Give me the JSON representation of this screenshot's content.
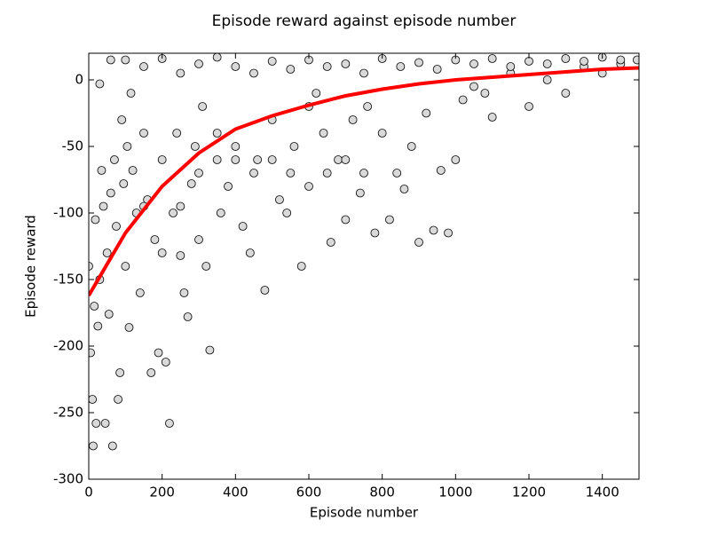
{
  "chart_data": {
    "type": "scatter",
    "title": "Episode reward against episode number",
    "xlabel": "Episode number",
    "ylabel": "Episode reward",
    "xlim": [
      0,
      1500
    ],
    "ylim": [
      -300,
      20
    ],
    "xticks": [
      0,
      200,
      400,
      600,
      800,
      1000,
      1200,
      1400
    ],
    "yticks": [
      -300,
      -250,
      -200,
      -150,
      -100,
      -50,
      0
    ],
    "series": [
      {
        "mode": "markers",
        "color": "#d9d9d9",
        "x": [
          0,
          5,
          10,
          12,
          15,
          18,
          20,
          25,
          30,
          35,
          40,
          45,
          50,
          55,
          60,
          65,
          70,
          75,
          80,
          85,
          90,
          95,
          100,
          105,
          110,
          115,
          120,
          130,
          140,
          150,
          160,
          170,
          180,
          190,
          200,
          210,
          220,
          230,
          240,
          250,
          260,
          270,
          280,
          290,
          300,
          310,
          320,
          330,
          350,
          360,
          380,
          400,
          420,
          440,
          460,
          480,
          500,
          520,
          540,
          560,
          580,
          600,
          620,
          640,
          660,
          680,
          700,
          720,
          740,
          760,
          780,
          800,
          820,
          840,
          860,
          880,
          900,
          920,
          940,
          960,
          980,
          1000,
          1020,
          1050,
          1080,
          1100,
          1150,
          1200,
          1250,
          1300,
          1350,
          1400,
          1450,
          1495,
          100,
          150,
          200,
          250,
          300,
          350,
          400,
          450,
          500,
          550,
          600,
          650,
          700,
          750,
          800,
          850,
          900,
          950,
          1000,
          1050,
          1100,
          1150,
          1200,
          1250,
          1300,
          1350,
          1400,
          1450,
          30,
          60,
          150,
          200,
          250,
          300,
          350,
          400,
          450,
          500,
          550,
          600,
          650,
          700,
          750
        ],
        "values": [
          -140,
          -205,
          -240,
          -275,
          -170,
          -105,
          -258,
          -185,
          -150,
          -68,
          -95,
          -258,
          -130,
          -176,
          -85,
          -275,
          -60,
          -110,
          -240,
          -220,
          -30,
          -78,
          -140,
          -50,
          -186,
          -10,
          -68,
          -100,
          -160,
          -40,
          -90,
          -220,
          -120,
          -205,
          -60,
          -212,
          -258,
          -100,
          -40,
          -132,
          -160,
          -178,
          -78,
          -50,
          -120,
          -20,
          -140,
          -203,
          -60,
          -100,
          -80,
          -50,
          -110,
          -130,
          -60,
          -158,
          -30,
          -90,
          -100,
          -50,
          -140,
          -80,
          -10,
          -40,
          -122,
          -60,
          -105,
          -30,
          -85,
          -20,
          -115,
          -40,
          -105,
          -70,
          -82,
          -50,
          -122,
          -25,
          -113,
          -68,
          -115,
          -60,
          -15,
          -5,
          -10,
          -28,
          5,
          -20,
          0,
          -10,
          10,
          5,
          12,
          15,
          15,
          10,
          16,
          5,
          12,
          17,
          10,
          5,
          14,
          8,
          15,
          10,
          12,
          5,
          16,
          10,
          13,
          8,
          15,
          12,
          16,
          10,
          14,
          12,
          16,
          14,
          17,
          15,
          -3,
          15,
          -95,
          -130,
          -95,
          -70,
          -40,
          -60,
          -70,
          -60,
          -70,
          -20,
          -70,
          -60,
          -70
        ]
      },
      {
        "mode": "line",
        "color": "#ff0000",
        "x": [
          0,
          100,
          200,
          300,
          400,
          500,
          600,
          700,
          800,
          900,
          1000,
          1100,
          1200,
          1300,
          1400,
          1500
        ],
        "values": [
          -162,
          -115,
          -80,
          -55,
          -37,
          -27,
          -19,
          -12,
          -7,
          -3,
          0,
          2,
          4,
          6,
          8,
          9
        ]
      }
    ]
  }
}
